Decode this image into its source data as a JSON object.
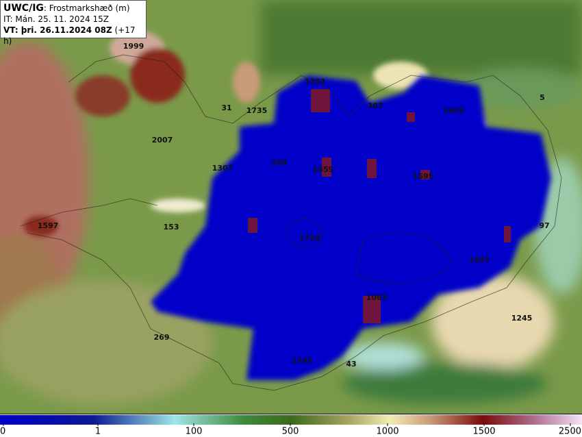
{
  "header": {
    "model": "UWC/IG",
    "field": ": Frostmarkshæð (m)",
    "init_time": "IT: Mán. 25. 11. 2024 15Z",
    "valid_time": "VT: þri. 26.11.2024 08Z",
    "lead_time": "(+17 h)"
  },
  "stations": [
    1999,
    1703,
    31,
    1735,
    307,
    1603,
    5,
    2007,
    1307,
    269,
    1659,
    1695,
    1597,
    153,
    1720,
    97,
    1597,
    1063,
    1245,
    269,
    1745,
    43
  ],
  "colorbar": {
    "ticks": [
      0,
      1,
      100,
      500,
      1000,
      1500,
      2500
    ]
  }
}
